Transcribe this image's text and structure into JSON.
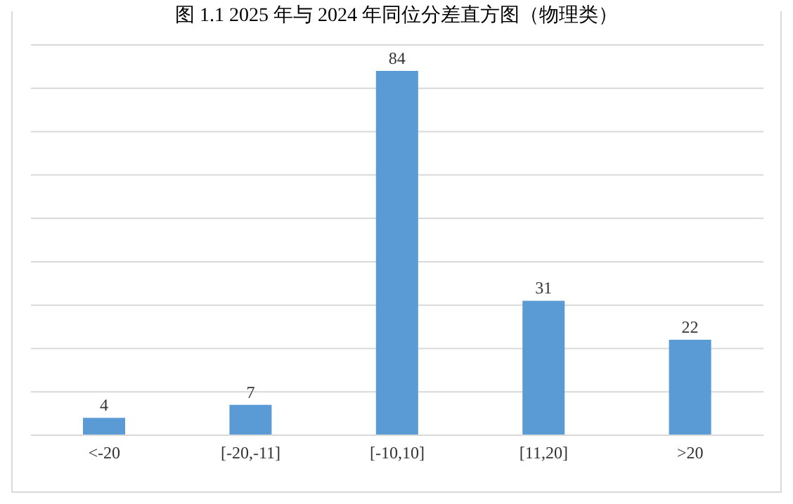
{
  "chart_data": {
    "type": "bar",
    "title": "图 1.1 2025 年与 2024 年同位分差直方图（物理类）",
    "categories": [
      "<-20",
      "[-20,-11]",
      "[-10,10]",
      "[11,20]",
      ">20"
    ],
    "values": [
      4,
      7,
      84,
      31,
      22
    ],
    "color": "#5b9bd5",
    "ylim": [
      0,
      90
    ],
    "tick_labels": "x",
    "grid": "y",
    "data_labels": true
  }
}
